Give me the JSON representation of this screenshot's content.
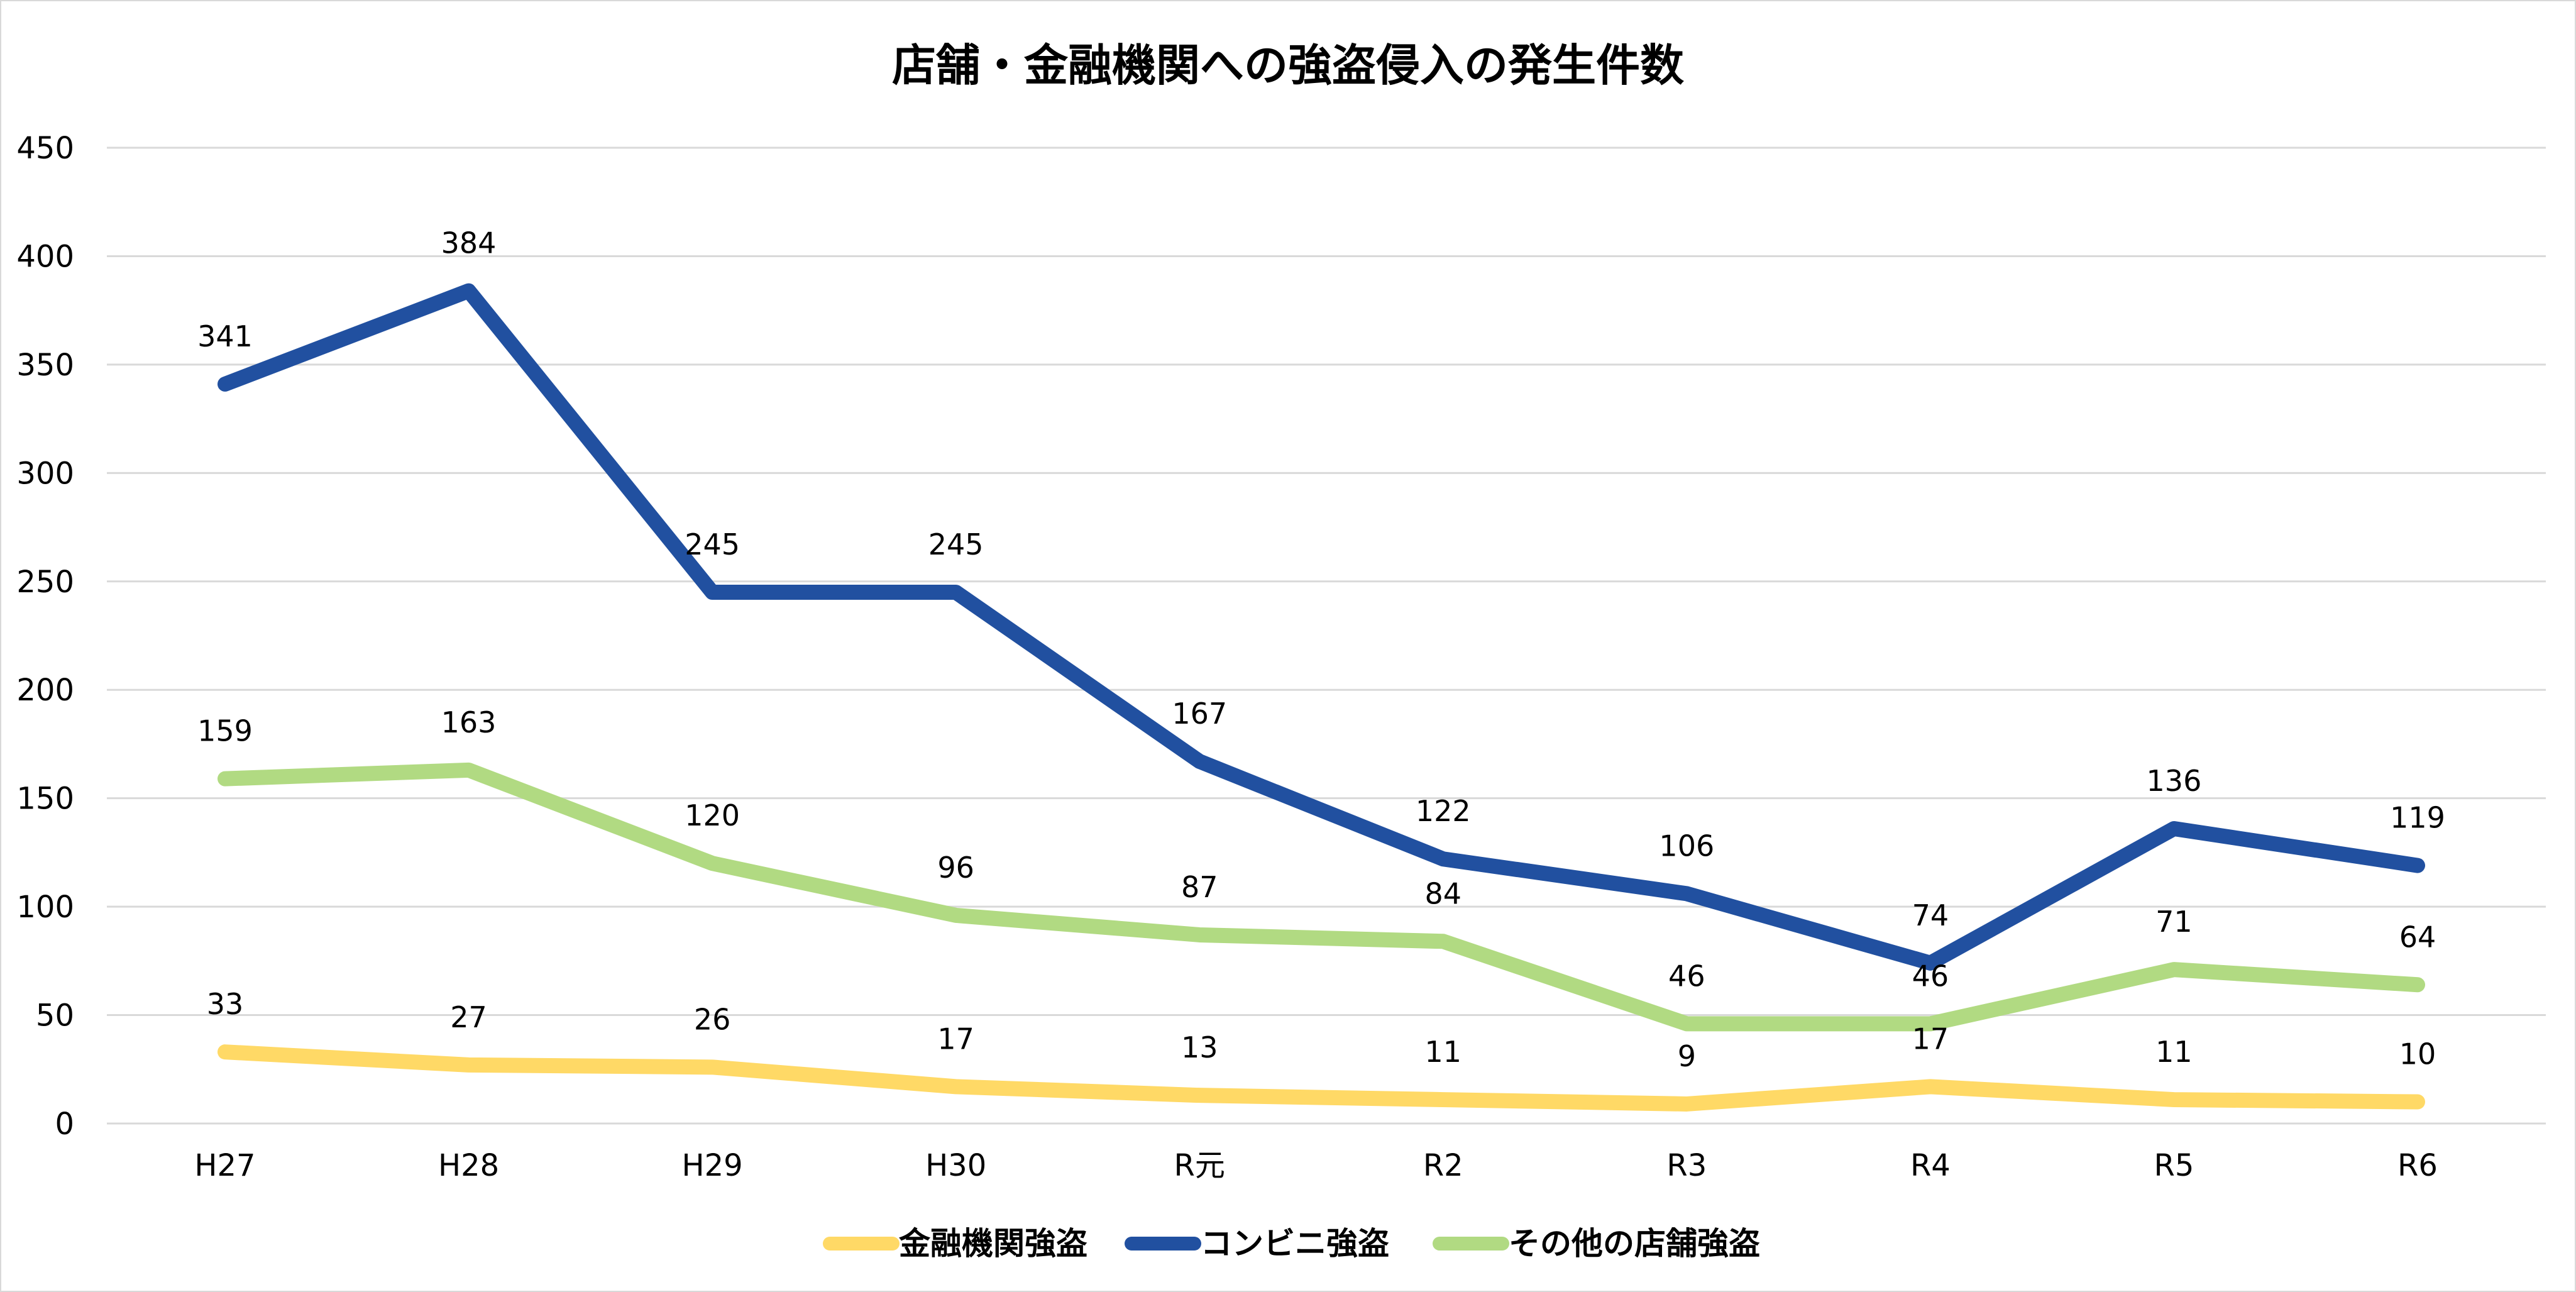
{
  "chart_data": {
    "type": "line",
    "title": "店舗・金融機関への強盗侵入の発生件数",
    "categories": [
      "H27",
      "H28",
      "H29",
      "H30",
      "R元",
      "R2",
      "R3",
      "R4",
      "R5",
      "R6"
    ],
    "ylim": [
      0,
      450
    ],
    "yticks": [
      0,
      50,
      100,
      150,
      200,
      250,
      300,
      350,
      400,
      450
    ],
    "grid": true,
    "legend": "bottom",
    "series": [
      {
        "name": "金融機関強盗",
        "color": "#FFD966",
        "values": [
          33,
          27,
          26,
          17,
          13,
          11,
          9,
          17,
          11,
          10
        ]
      },
      {
        "name": "コンビニ強盗",
        "color": "#2150A0",
        "values": [
          341,
          384,
          245,
          245,
          167,
          122,
          106,
          74,
          136,
          119
        ]
      },
      {
        "name": "その他の店舗強盗",
        "color": "#B1DA82",
        "values": [
          159,
          163,
          120,
          96,
          87,
          84,
          46,
          46,
          71,
          64
        ]
      }
    ]
  }
}
